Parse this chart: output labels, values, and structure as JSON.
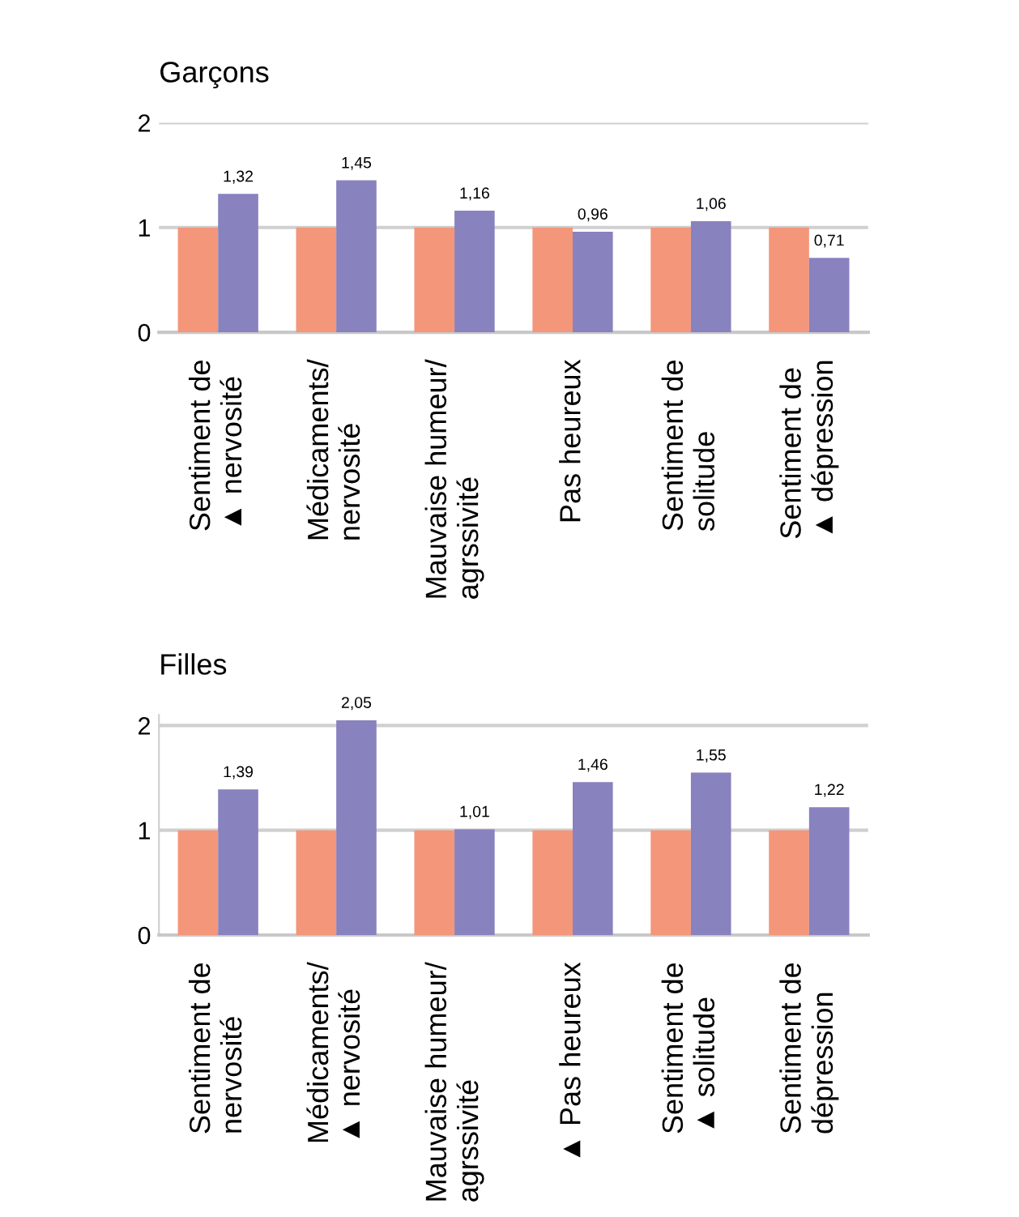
{
  "chart_data": [
    {
      "type": "bar",
      "title": "Garçons",
      "categories": [
        "Sentiment de\n▲ nervosité",
        "Médicaments/\nnervosité",
        "Mauvaise humeur/\nagrssivité",
        "Pas heureux",
        "Sentiment de\nsolitude",
        "Sentiment de\n▲ dépression"
      ],
      "series": [
        {
          "color": "#f4967a",
          "values": [
            1,
            1,
            1,
            1,
            1,
            1
          ]
        },
        {
          "color": "#8882be",
          "values": [
            1.32,
            1.45,
            1.16,
            0.96,
            1.06,
            0.71
          ],
          "value_labels": [
            "1,32",
            "1,45",
            "1,16",
            "0,96",
            "1,06",
            "0,71"
          ]
        }
      ],
      "ylim": [
        0,
        2
      ],
      "yticks": [
        0,
        1,
        2
      ],
      "grid": "y",
      "legend": false
    },
    {
      "type": "bar",
      "title": "Filles",
      "categories": [
        "Sentiment de\nnervosité",
        "Médicaments/\n▲ nervosité",
        "Mauvaise humeur/\nagrssivité",
        "▲ Pas heureux",
        "Sentiment de\n▲ solitude",
        "Sentiment de\ndépression"
      ],
      "series": [
        {
          "color": "#f4967a",
          "values": [
            1,
            1,
            1,
            1,
            1,
            1
          ]
        },
        {
          "color": "#8882be",
          "values": [
            1.39,
            2.05,
            1.01,
            1.46,
            1.55,
            1.22
          ],
          "value_labels": [
            "1,39",
            "2,05",
            "1,01",
            "1,46",
            "1,55",
            "1,22"
          ]
        }
      ],
      "ylim": [
        0,
        2.1
      ],
      "yticks": [
        0,
        1,
        2
      ],
      "grid": "y",
      "legend": false
    }
  ]
}
